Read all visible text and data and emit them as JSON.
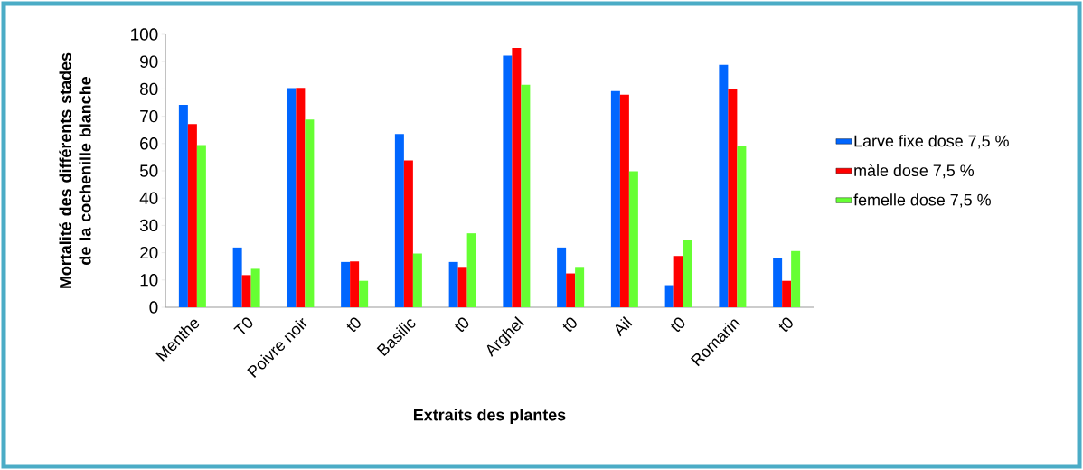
{
  "chart_data": {
    "type": "bar",
    "xlabel": "Extraits des plantes",
    "ylabel": "Mortalité des différents stades de la cochenille blanche",
    "categories": [
      "Menthe",
      "T0",
      "Poivre noir",
      "t0",
      "Basilic",
      "t0",
      "Arghel",
      "t0",
      "Ail",
      "t0",
      "Romarin",
      "t0"
    ],
    "series": [
      {
        "name": "Larve fixe dose 7,5 %",
        "color": "#0066ff",
        "values": [
          74.2,
          21.9,
          80.3,
          16.6,
          63.5,
          16.6,
          92.2,
          21.9,
          79.2,
          8.1,
          88.8,
          18.0
        ]
      },
      {
        "name": "màle dose 7,5 %",
        "color": "#ff0000",
        "values": [
          67.1,
          11.8,
          80.4,
          16.8,
          53.8,
          14.8,
          95.0,
          12.4,
          77.9,
          18.8,
          80.0,
          9.7
        ]
      },
      {
        "name": "femelle dose  7,5 %",
        "color": "#66ff33",
        "values": [
          59.4,
          14.1,
          68.8,
          9.7,
          19.7,
          27.1,
          81.5,
          14.8,
          49.8,
          24.8,
          59.0,
          20.6
        ]
      }
    ],
    "ylim": [
      0,
      100
    ],
    "yticks": [
      0,
      10,
      20,
      30,
      40,
      50,
      60,
      70,
      80,
      90,
      100
    ],
    "grid": false,
    "legend": "right"
  }
}
